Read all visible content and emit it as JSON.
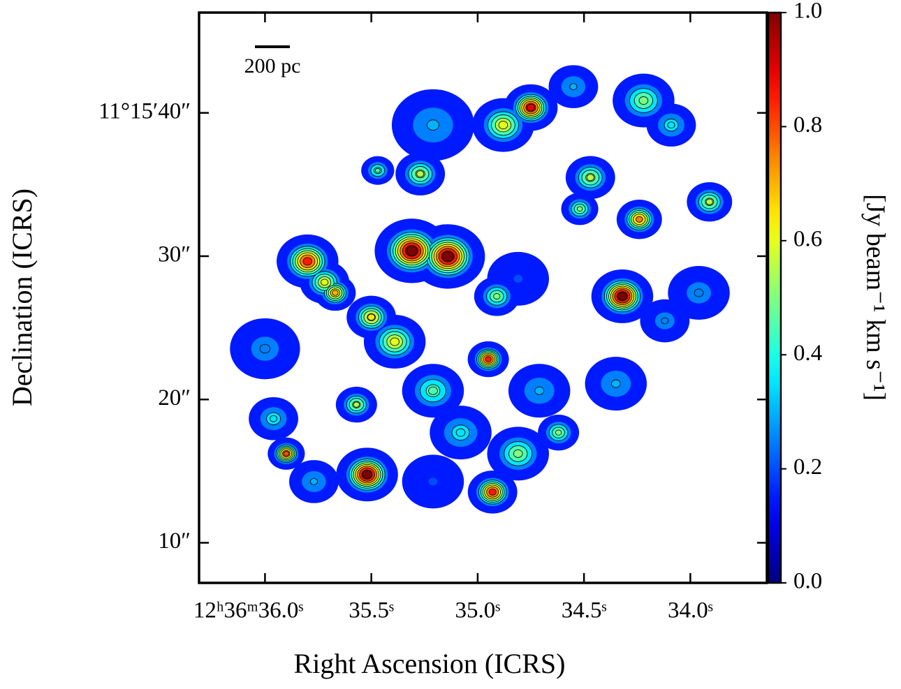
{
  "chart_data": {
    "type": "image",
    "xlabel": "Right Ascension (ICRS)",
    "ylabel": "Declination (ICRS)",
    "xlim": [
      36.31,
      33.64
    ],
    "ylim": [
      7.2,
      47.0
    ],
    "xticks": [
      {
        "value": 36.0,
        "label": "12ʰ36ᵐ36.0ˢ"
      },
      {
        "value": 35.5,
        "label": "35.5ˢ"
      },
      {
        "value": 35.0,
        "label": "35.0ˢ"
      },
      {
        "value": 34.5,
        "label": "34.5ˢ"
      },
      {
        "value": 34.0,
        "label": "34.0ˢ"
      }
    ],
    "yticks": [
      {
        "value": 10,
        "label": "10″"
      },
      {
        "value": 20,
        "label": "20″"
      },
      {
        "value": 30,
        "label": "30″"
      },
      {
        "value": 40,
        "label": "11°15′40″"
      }
    ],
    "colorbar": {
      "label": "[Jy beam⁻¹ km s⁻¹]",
      "clim": [
        0,
        1
      ],
      "colormap": "jet",
      "ticks": [
        {
          "value": 0,
          "label": "0.0"
        },
        0.2,
        0.4,
        0.6,
        0.8,
        {
          "value": 1,
          "label": "1.0"
        }
      ]
    },
    "scale_bar": {
      "label": "200 pc"
    },
    "clumps": {
      "x": [
        34.75,
        34.88,
        35.21,
        35.27,
        35.47,
        35.31,
        35.14,
        35.8,
        35.72,
        35.5,
        35.39,
        35.21,
        34.95,
        34.91,
        35.52,
        35.57,
        35.9,
        35.96,
        36.0,
        34.93,
        34.81,
        35.08,
        34.32,
        34.24,
        33.91,
        34.47,
        34.52,
        34.22,
        34.09,
        34.62,
        34.35,
        34.12,
        34.55,
        34.71,
        35.67,
        33.96,
        34.81,
        35.21,
        35.77
      ],
      "y": [
        40.37,
        39.15,
        39.15,
        35.74,
        35.98,
        30.37,
        29.98,
        29.64,
        28.18,
        25.74,
        24.03,
        20.61,
        22.81,
        27.2,
        14.76,
        19.64,
        16.22,
        18.66,
        23.54,
        13.54,
        16.22,
        17.69,
        27.2,
        32.57,
        33.79,
        35.49,
        33.3,
        40.86,
        39.15,
        17.69,
        21.1,
        25.49,
        41.83,
        20.61,
        27.44,
        27.44,
        28.42,
        14.27,
        14.27
      ],
      "values": [
        0.9,
        0.6,
        0.3,
        0.55,
        0.45,
        1.0,
        1.0,
        0.85,
        0.6,
        0.65,
        0.6,
        0.45,
        0.85,
        0.5,
        1.0,
        0.55,
        0.8,
        0.35,
        0.25,
        0.85,
        0.5,
        0.35,
        1.0,
        0.75,
        0.55,
        0.55,
        0.5,
        0.5,
        0.35,
        0.5,
        0.3,
        0.25,
        0.3,
        0.3,
        0.7,
        0.25,
        0.2,
        0.2,
        0.3
      ],
      "sizes": [
        1.3,
        1.5,
        2.0,
        1.2,
        0.8,
        1.8,
        1.8,
        1.5,
        1.2,
        1.2,
        1.5,
        1.5,
        1.0,
        1.1,
        1.5,
        1.0,
        0.9,
        1.2,
        1.7,
        1.2,
        1.5,
        1.5,
        1.5,
        1.1,
        1.1,
        1.2,
        0.9,
        1.5,
        1.2,
        1.0,
        1.5,
        1.2,
        1.2,
        1.5,
        1.0,
        1.5,
        1.5,
        1.5,
        1.2
      ]
    }
  }
}
